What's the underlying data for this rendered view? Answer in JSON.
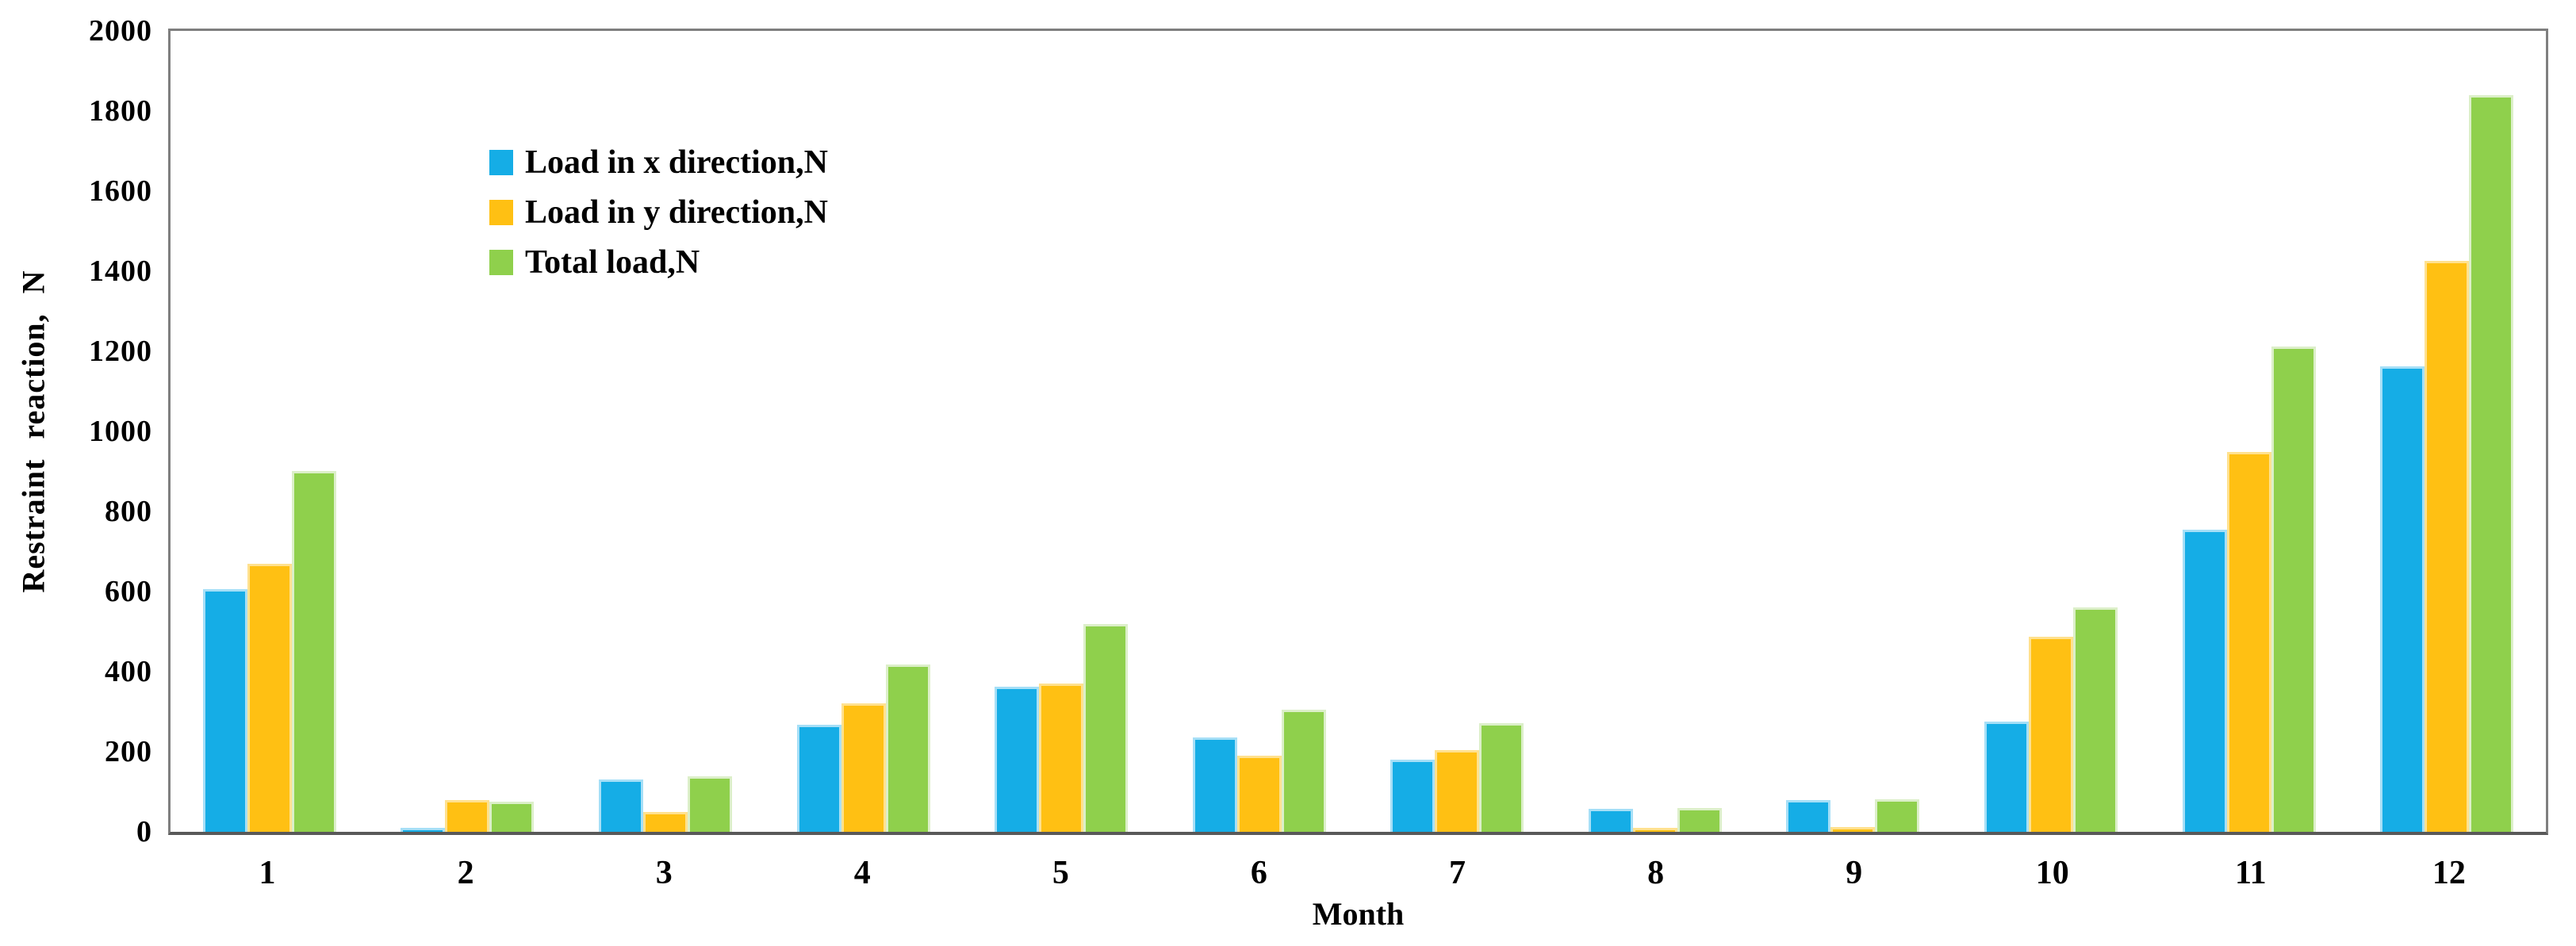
{
  "chart_data": {
    "type": "bar",
    "title": "",
    "xlabel": "Month",
    "ylabel": "Restraint reaction, N",
    "categories": [
      "1",
      "2",
      "3",
      "4",
      "5",
      "6",
      "7",
      "8",
      "9",
      "10",
      "11",
      "12"
    ],
    "series": [
      {
        "name": "Load in x direction,N",
        "color": "#15ADE6",
        "edge_color": "#A6DFF7",
        "values": [
          605,
          10,
          130,
          268,
          363,
          236,
          180,
          58,
          80,
          276,
          755,
          1162
        ]
      },
      {
        "name": "Load in y direction,N",
        "color": "#FFC013",
        "edge_color": "#FFE18F",
        "values": [
          670,
          80,
          50,
          320,
          370,
          191,
          204,
          10,
          12,
          487,
          948,
          1425
        ]
      },
      {
        "name": "Total load,N",
        "color": "#8FD04C",
        "edge_color": "#DCEFC9",
        "values": [
          901,
          76,
          139,
          418,
          518,
          304,
          272,
          59,
          81,
          560,
          1212,
          1839
        ]
      }
    ],
    "ylim": [
      0,
      2000
    ],
    "yticks": [
      0,
      200,
      400,
      600,
      800,
      1000,
      1200,
      1400,
      1600,
      1800,
      2000
    ],
    "grid": false,
    "legend_position": "top-left-inside",
    "axis_border_color": "#7f7f7f",
    "baseline_color": "#595959"
  }
}
